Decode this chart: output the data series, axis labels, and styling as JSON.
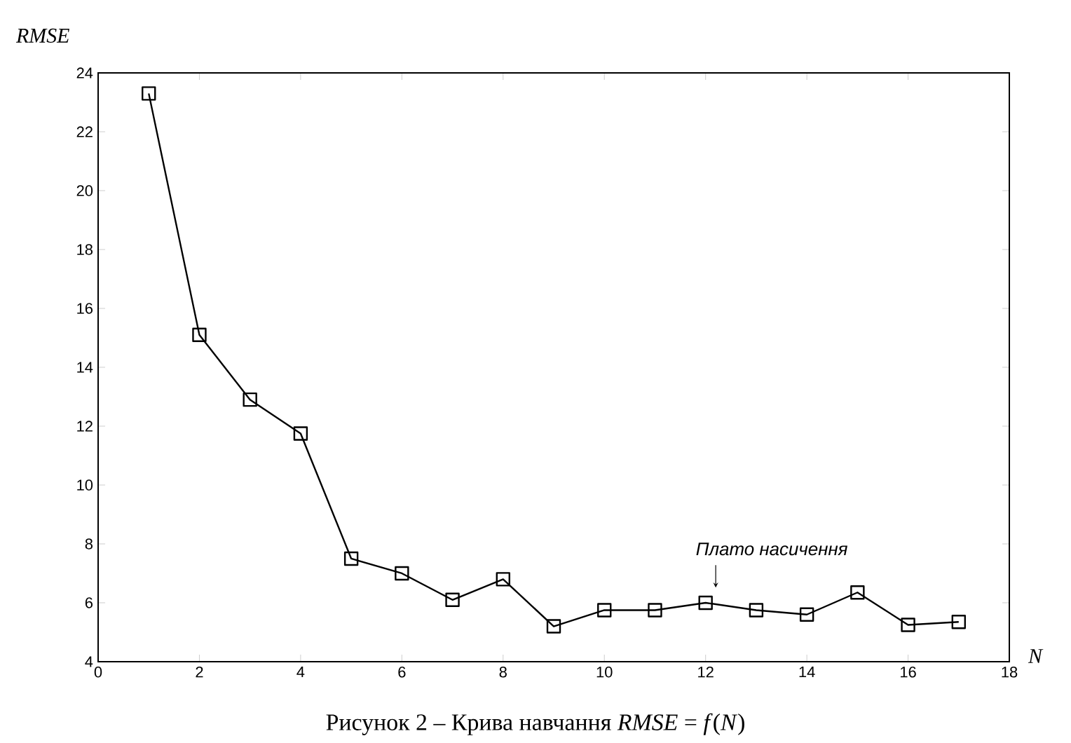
{
  "chart_data": {
    "type": "line",
    "xlabel": "N",
    "ylabel": "RMSE",
    "x": [
      1,
      2,
      3,
      4,
      5,
      6,
      7,
      8,
      9,
      10,
      11,
      12,
      13,
      14,
      15,
      16,
      17
    ],
    "series": [
      {
        "color": "#000000",
        "values": [
          23.3,
          15.1,
          12.9,
          11.75,
          7.5,
          7.0,
          6.1,
          6.8,
          5.2,
          5.75,
          5.75,
          6.0,
          5.75,
          5.6,
          6.35,
          5.25,
          5.35
        ]
      }
    ],
    "marker": "square",
    "line_style": "solid",
    "grid": false,
    "xlim": [
      0,
      18
    ],
    "ylim": [
      4,
      24
    ],
    "xticks": [
      0,
      2,
      4,
      6,
      8,
      10,
      12,
      14,
      16,
      18
    ],
    "yticks": [
      4,
      6,
      8,
      10,
      12,
      14,
      16,
      18,
      20,
      22,
      24
    ],
    "annotations": [
      {
        "text": "Плато насичення",
        "x": 12.2,
        "y": 6.3
      },
      "Рисунок 2 – Крива навчання *RMSE* = *f*(*N*)"
    ]
  }
}
